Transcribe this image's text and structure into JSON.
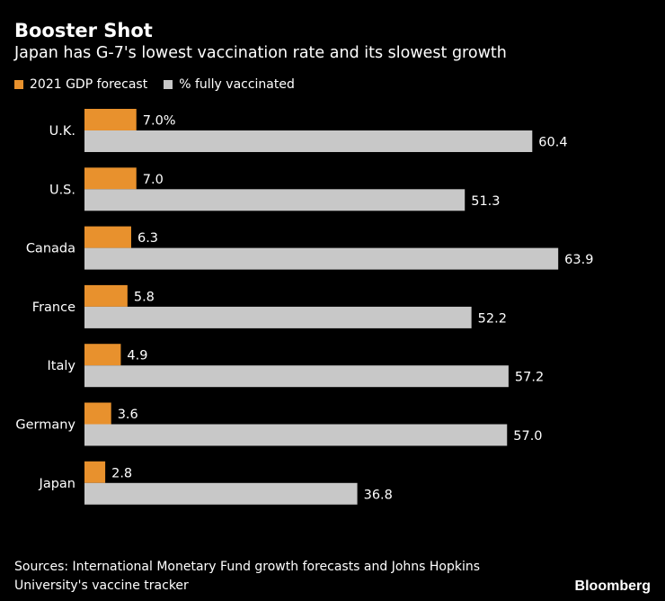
{
  "header": {
    "title": "Booster Shot",
    "subtitle": "Japan has G-7's lowest vaccination rate and its slowest growth"
  },
  "legend": [
    {
      "label": "2021 GDP forecast",
      "color": "#e8912d"
    },
    {
      "label": "% fully vaccinated",
      "color": "#c8c8c8"
    }
  ],
  "chart_data": {
    "type": "bar",
    "orientation": "horizontal",
    "categories": [
      "U.K.",
      "U.S.",
      "Canada",
      "France",
      "Italy",
      "Germany",
      "Japan"
    ],
    "series": [
      {
        "name": "2021 GDP forecast",
        "color": "#e8912d",
        "values": [
          7.0,
          7.0,
          6.3,
          5.8,
          4.9,
          3.6,
          2.8
        ],
        "labels": [
          "7.0%",
          "7.0",
          "6.3",
          "5.8",
          "4.9",
          "3.6",
          "2.8"
        ]
      },
      {
        "name": "% fully vaccinated",
        "color": "#c8c8c8",
        "values": [
          60.4,
          51.3,
          63.9,
          52.2,
          57.2,
          57.0,
          36.8
        ],
        "labels": [
          "60.4",
          "51.3",
          "63.9",
          "52.2",
          "57.2",
          "57.0",
          "36.8"
        ]
      }
    ],
    "xlim": [
      0,
      64
    ],
    "grid": false
  },
  "footer": {
    "source_line1": "Sources: International Monetary Fund growth forecasts and Johns Hopkins",
    "source_line2": "University's vaccine tracker",
    "brand": "Bloomberg"
  }
}
